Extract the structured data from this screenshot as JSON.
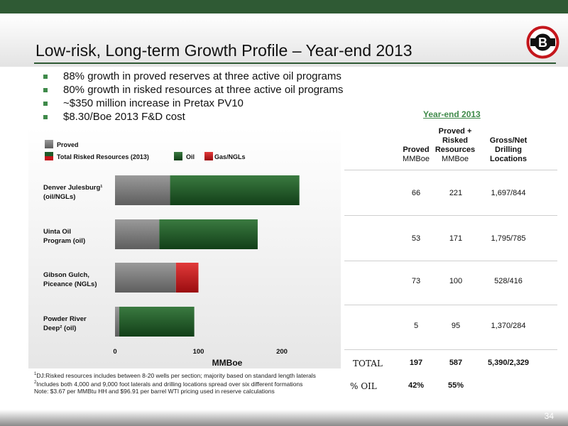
{
  "title": "Low-risk, Long-term Growth Profile – Year-end 2013",
  "page_number": "34",
  "bullets": [
    "88% growth in proved reserves at three active oil programs",
    "80% growth in risked resources at three active oil programs",
    "~$350 million increase in Pretax PV10",
    "$8.30/Boe 2013 F&D cost"
  ],
  "logo_letter": "B",
  "colors": {
    "accent": "#2f5a34",
    "proved": "#7a7a7a",
    "oil": "#1f5a28",
    "gas": "#c4161c",
    "bullet": "#3f8a4a"
  },
  "chart_data": {
    "type": "bar",
    "orientation": "horizontal",
    "stacked": true,
    "categories": [
      "Denver Julesburg¹ (oil/NGLs)",
      "Uinta Oil Program (oil)",
      "Gibson Gulch, Piceance (NGLs)",
      "Powder River Deep² (oil)"
    ],
    "category_lines": [
      [
        "Denver Julesburg¹",
        "(oil/NGLs)"
      ],
      [
        "Uinta Oil",
        "Program (oil)"
      ],
      [
        "Gibson Gulch,",
        "Piceance (NGLs)"
      ],
      [
        "Powder River",
        "Deep² (oil)"
      ]
    ],
    "series": [
      {
        "name": "Proved",
        "values": [
          66,
          53,
          73,
          5
        ]
      },
      {
        "name": "Total Risked Resources (2013)",
        "values": [
          155,
          118,
          27,
          90
        ],
        "segment_types": [
          "oil",
          "oil",
          "gas",
          "oil"
        ]
      }
    ],
    "legend": {
      "proved": "Proved",
      "risked": "Total Risked Resources (2013)",
      "oil": "Oil",
      "gas": "Gas/NGLs"
    },
    "legend_position": "top-left",
    "xlabel": "MMBoe",
    "xlim": [
      0,
      240
    ],
    "xticks": [
      0,
      100,
      200
    ],
    "grid": false
  },
  "table": {
    "section_title": "Year-end 2013",
    "columns": [
      {
        "title": "Proved",
        "unit": "MMBoe"
      },
      {
        "title": "Proved + Risked Resources",
        "title_lines": [
          "Proved +",
          "Risked",
          "Resources"
        ],
        "unit": "MMBoe"
      },
      {
        "title": "Gross/Net Drilling Locations",
        "title_lines": [
          "Gross/Net",
          "Drilling",
          "Locations"
        ],
        "unit": ""
      }
    ],
    "rows": [
      [
        "66",
        "221",
        "1,697/844"
      ],
      [
        "53",
        "171",
        "1,795/785"
      ],
      [
        "73",
        "100",
        "528/416"
      ],
      [
        "5",
        "95",
        "1,370/284"
      ]
    ],
    "total": {
      "label": "TOTAL",
      "values": [
        "197",
        "587",
        "5,390/2,329"
      ]
    },
    "oil_pct": {
      "label": "% OIL",
      "values": [
        "42%",
        "55%"
      ]
    }
  },
  "footnotes": [
    "DJ:Risked resources includes between 8-20 wells per section; majority based on standard length laterals",
    "Includes both 4,000 and 9,000 foot laterals and drilling locations spread over six different formations",
    "Note: $3.67 per MMBtu HH and $96.91 per barrel WTI pricing used in reserve calculations"
  ]
}
